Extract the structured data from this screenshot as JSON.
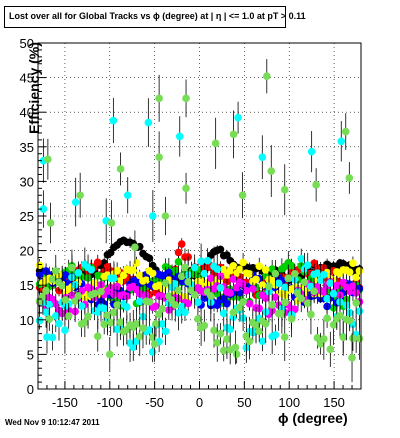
{
  "title": "Lost over all for Global Tracks vs ϕ (degree) at | η | <= 1.0 at pT > 0.11",
  "timestamp": "Wed Nov  9 10:12:47 2011",
  "chart_data": {
    "type": "scatter",
    "title": "Lost over all for Global Tracks vs ϕ (degree) at | η | <= 1.0 at pT > 0.11",
    "xlabel": "ϕ (degree)",
    "ylabel": "Efficiency (%)",
    "xlim": [
      -180,
      180
    ],
    "ylim": [
      0,
      50
    ],
    "xticks": [
      -150,
      -100,
      -50,
      0,
      50,
      100,
      150
    ],
    "yticks": [
      0,
      5,
      10,
      15,
      20,
      25,
      30,
      35,
      40,
      45,
      50
    ],
    "grid": true,
    "legend": "none",
    "series": [
      {
        "color": "#000000",
        "base": 17.0,
        "amp": 1.0,
        "noise": 0.6,
        "err": 0.6,
        "bump": [
          [
            -110,
            -45,
            3.5
          ],
          [
            5,
            35,
            2.5
          ],
          [
            55,
            95,
            0.8
          ]
        ]
      },
      {
        "color": "#ff0000",
        "base": 16.0,
        "amp": 1.5,
        "noise": 1.0,
        "err": 0.9,
        "bump": [
          [
            -30,
            -10,
            4
          ]
        ]
      },
      {
        "color": "#00d000",
        "base": 15.0,
        "amp": 2.0,
        "noise": 1.6,
        "err": 1.2,
        "bump": []
      },
      {
        "color": "#0000ff",
        "base": 14.5,
        "amp": 1.5,
        "noise": 1.2,
        "err": 1.0,
        "bump": []
      },
      {
        "color": "#ffff00",
        "base": 15.5,
        "amp": 1.5,
        "noise": 1.4,
        "err": 1.1,
        "bump": []
      },
      {
        "color": "#ff00ff",
        "base": 13.5,
        "amp": 1.5,
        "noise": 1.4,
        "err": 1.2,
        "bump": []
      },
      {
        "color": "#00ffff",
        "base": 12.0,
        "amp": 3.0,
        "noise": 4.0,
        "err": 2.0,
        "bump": []
      },
      {
        "color": "#77dd55",
        "base": 11.0,
        "amp": 3.0,
        "noise": 4.0,
        "err": 2.2,
        "bump": []
      }
    ],
    "outliers": [
      {
        "x": -174,
        "y": 33.0,
        "color": "#00ffff"
      },
      {
        "x": -169,
        "y": 33.2,
        "color": "#77dd55"
      },
      {
        "x": -174,
        "y": 26.0,
        "color": "#00ffff"
      },
      {
        "x": -166,
        "y": 24.0,
        "color": "#77dd55"
      },
      {
        "x": -138,
        "y": 27.0,
        "color": "#00ffff"
      },
      {
        "x": -133,
        "y": 28.0,
        "color": "#77dd55"
      },
      {
        "x": -104,
        "y": 24.3,
        "color": "#00ffff"
      },
      {
        "x": -98,
        "y": 24.0,
        "color": "#77dd55"
      },
      {
        "x": -96,
        "y": 38.8,
        "color": "#00ffff"
      },
      {
        "x": -88,
        "y": 31.8,
        "color": "#77dd55"
      },
      {
        "x": -80,
        "y": 28.0,
        "color": "#00ffff"
      },
      {
        "x": -72,
        "y": 20.5,
        "color": "#77dd55"
      },
      {
        "x": -57,
        "y": 38.5,
        "color": "#00ffff"
      },
      {
        "x": -52,
        "y": 25.0,
        "color": "#00ffff"
      },
      {
        "x": -45,
        "y": 42.0,
        "color": "#77dd55"
      },
      {
        "x": -45,
        "y": 33.5,
        "color": "#77dd55"
      },
      {
        "x": -38,
        "y": 25.0,
        "color": "#77dd55"
      },
      {
        "x": -22,
        "y": 36.5,
        "color": "#00ffff"
      },
      {
        "x": -15,
        "y": 42.0,
        "color": "#77dd55"
      },
      {
        "x": -15,
        "y": 29.0,
        "color": "#77dd55"
      },
      {
        "x": 18,
        "y": 35.5,
        "color": "#77dd55"
      },
      {
        "x": 38,
        "y": 36.8,
        "color": "#77dd55"
      },
      {
        "x": 43,
        "y": 39.2,
        "color": "#00ffff"
      },
      {
        "x": 48,
        "y": 28.0,
        "color": "#77dd55"
      },
      {
        "x": 75,
        "y": 45.2,
        "color": "#77dd55"
      },
      {
        "x": 70,
        "y": 33.5,
        "color": "#00ffff"
      },
      {
        "x": 80,
        "y": 31.5,
        "color": "#77dd55"
      },
      {
        "x": 95,
        "y": 28.8,
        "color": "#77dd55"
      },
      {
        "x": 125,
        "y": 34.3,
        "color": "#00ffff"
      },
      {
        "x": 130,
        "y": 29.5,
        "color": "#77dd55"
      },
      {
        "x": 158,
        "y": 35.8,
        "color": "#00ffff"
      },
      {
        "x": 163,
        "y": 37.2,
        "color": "#77dd55"
      },
      {
        "x": 167,
        "y": 30.5,
        "color": "#77dd55"
      },
      {
        "x": -150,
        "y": 8.5,
        "color": "#00ffff"
      },
      {
        "x": -100,
        "y": 5.0,
        "color": "#77dd55"
      },
      {
        "x": -50,
        "y": 6.5,
        "color": "#77dd55"
      },
      {
        "x": 40,
        "y": 6.0,
        "color": "#77dd55"
      },
      {
        "x": 95,
        "y": 7.5,
        "color": "#77dd55"
      },
      {
        "x": 170,
        "y": 4.5,
        "color": "#77dd55"
      },
      {
        "x": -170,
        "y": 7.5,
        "color": "#00ffff"
      }
    ]
  }
}
